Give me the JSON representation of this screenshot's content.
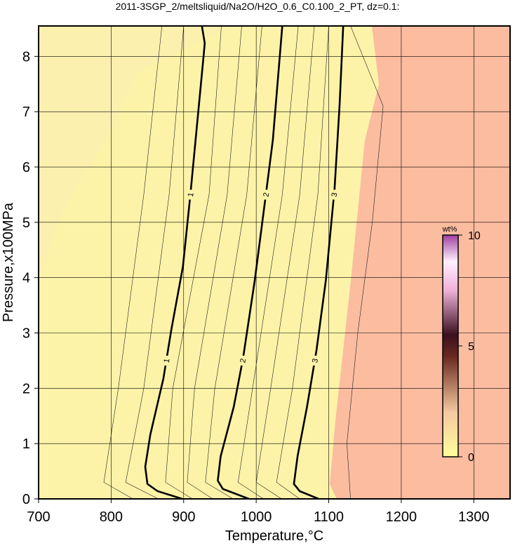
{
  "chart_data": {
    "type": "contour",
    "title": "2011-3SGP_2/meltsliquid/Na2O/H2O_0.6_C0.100_2_PT, dz=0.1:",
    "x_label": "Temperature,°C",
    "y_label": "Pressure,x100MPa",
    "xlim": [
      700,
      1350
    ],
    "ylim": [
      0,
      8.55
    ],
    "xticks": [
      700,
      800,
      900,
      1000,
      1100,
      1200,
      1300
    ],
    "yticks": [
      0,
      1,
      2,
      3,
      4,
      5,
      6,
      7,
      8
    ],
    "grid": true,
    "contours": [
      {
        "level": 0.5,
        "x": [
          870,
          845,
          810,
          790,
          830
        ],
        "y": [
          8.55,
          5.5,
          2,
          0.3,
          0
        ]
      },
      {
        "level": 0.75,
        "x": [
          900,
          880,
          845,
          820,
          865
        ],
        "y": [
          8.55,
          5.5,
          2,
          0.3,
          0
        ]
      },
      {
        "level": 1,
        "x": [
          925,
          929,
          928,
          909,
          899,
          883,
          872,
          854,
          847,
          850,
          864,
          898
        ],
        "y": [
          8.56,
          8.24,
          8.08,
          5.47,
          4.2,
          3.06,
          2.17,
          1.16,
          0.58,
          0.27,
          0.14,
          0
        ]
      },
      {
        "level": 1.25,
        "x": [
          952,
          935,
          885,
          875,
          912
        ],
        "y": [
          8.55,
          5.5,
          2,
          0.3,
          0
        ]
      },
      {
        "level": 1.5,
        "x": [
          980,
          960,
          915,
          905,
          940
        ],
        "y": [
          8.55,
          5.5,
          2,
          0.3,
          0
        ]
      },
      {
        "level": 1.75,
        "x": [
          1008,
          987,
          943,
          930,
          968
        ],
        "y": [
          8.55,
          5.5,
          2,
          0.3,
          0
        ]
      },
      {
        "level": 2,
        "x": [
          1036,
          1023,
          1013,
          998,
          982,
          969,
          951,
          947,
          954,
          990
        ],
        "y": [
          8.56,
          6.49,
          5.47,
          3.95,
          2.55,
          1.66,
          0.77,
          0.33,
          0.18,
          0
        ]
      },
      {
        "level": 2.25,
        "x": [
          1058,
          1036,
          995,
          975,
          1010
        ],
        "y": [
          8.55,
          5.5,
          2,
          0.3,
          0
        ]
      },
      {
        "level": 2.5,
        "x": [
          1080,
          1060,
          1020,
          1000,
          1035
        ],
        "y": [
          8.55,
          5.5,
          2,
          0.3,
          0
        ]
      },
      {
        "level": 2.75,
        "x": [
          1100,
          1085,
          1050,
          1028,
          1060
        ],
        "y": [
          8.55,
          5.5,
          2,
          0.3,
          0
        ]
      },
      {
        "level": 3,
        "x": [
          1120,
          1115,
          1108,
          1096,
          1083,
          1070,
          1057,
          1052,
          1060,
          1086
        ],
        "y": [
          8.56,
          7.12,
          5.6,
          3.95,
          2.68,
          1.66,
          0.77,
          0.27,
          0.14,
          0
        ]
      },
      {
        "level": 3.5,
        "x": [
          1130,
          1175,
          1160,
          1140,
          1125,
          1130
        ],
        "y": [
          8.55,
          7.1,
          5,
          3,
          1,
          0
        ]
      }
    ],
    "colorbar": {
      "label": "wt%",
      "lim": [
        0,
        10
      ],
      "ticks": [
        0,
        5,
        10
      ]
    }
  }
}
